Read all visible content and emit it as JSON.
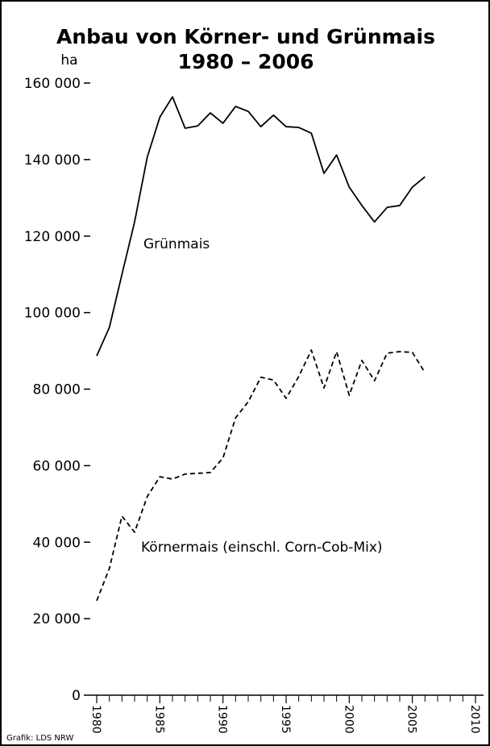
{
  "chart_data": {
    "type": "line",
    "title": "Anbau von Körner- und Grünmais",
    "subtitle": "1980 – 2006",
    "y_label": "ha",
    "source": "Grafik: LDS NRW",
    "x": [
      1980,
      1981,
      1982,
      1983,
      1984,
      1985,
      1986,
      1987,
      1988,
      1989,
      1990,
      1991,
      1992,
      1993,
      1994,
      1995,
      1996,
      1997,
      1998,
      1999,
      2000,
      2001,
      2002,
      2003,
      2004,
      2005,
      2006
    ],
    "series": [
      {
        "name": "Grünmais",
        "color": "#000000",
        "style": "solid",
        "values": [
          88700,
          96100,
          110000,
          123700,
          140600,
          151100,
          156400,
          148200,
          148800,
          152200,
          149500,
          153900,
          152600,
          148600,
          151600,
          148600,
          148400,
          146900,
          136400,
          141200,
          132800,
          128000,
          123700,
          127500,
          128000,
          132800,
          135500
        ]
      },
      {
        "name": "Körnermais (einschl. Corn-Cob-Mix)",
        "color": "#000000",
        "style": "dashed",
        "values": [
          24700,
          33100,
          46800,
          42600,
          51900,
          57100,
          56500,
          57800,
          58000,
          58200,
          62000,
          72500,
          76700,
          83100,
          82400,
          77600,
          83300,
          90200,
          80300,
          89800,
          78400,
          87500,
          82200,
          89400,
          89800,
          89600,
          84300
        ]
      }
    ],
    "xlim": [
      1980,
      2010
    ],
    "xticks": [
      1980,
      1985,
      1990,
      1995,
      2000,
      2005,
      2010
    ],
    "ylim": [
      0,
      160000
    ],
    "yticks": [
      0,
      {
        "value": 20000,
        "label": "20 000"
      },
      {
        "value": 40000,
        "label": "40 000"
      },
      {
        "value": 60000,
        "label": "60 000"
      },
      {
        "value": 80000,
        "label": "80 000"
      },
      {
        "value": 100000,
        "label": "100 000"
      },
      {
        "value": 120000,
        "label": "120 000"
      },
      {
        "value": 140000,
        "label": "140 000"
      },
      {
        "value": 160000,
        "label": "160 000"
      }
    ],
    "grid": false
  }
}
